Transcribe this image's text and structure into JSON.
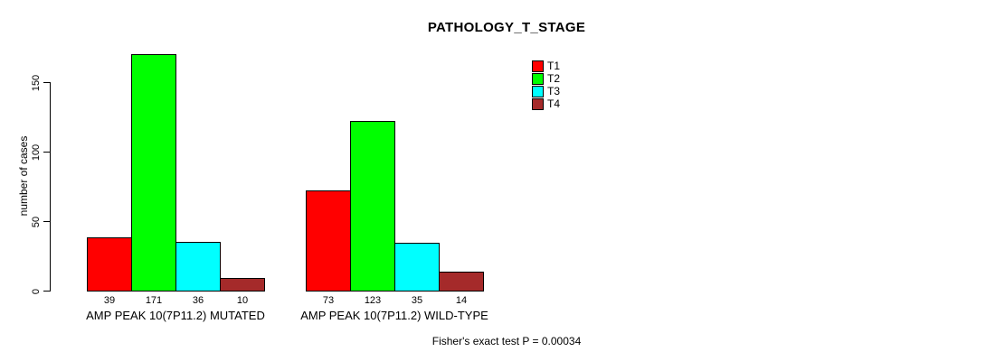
{
  "chart_data": {
    "type": "bar",
    "title": "PATHOLOGY_T_STAGE",
    "ylabel": "number of cases",
    "xlabel": "",
    "categories": [
      "AMP PEAK 10(7P11.2) MUTATED",
      "AMP PEAK 10(7P11.2) WILD-TYPE"
    ],
    "series": [
      {
        "name": "T1",
        "color": "#FF0000",
        "values": [
          39,
          73
        ]
      },
      {
        "name": "T2",
        "color": "#00FF00",
        "values": [
          171,
          123
        ]
      },
      {
        "name": "T3",
        "color": "#00FFFF",
        "values": [
          36,
          35
        ]
      },
      {
        "name": "T4",
        "color": "#A52A2A",
        "values": [
          10,
          14
        ]
      }
    ],
    "bar_value_labels": [
      [
        39,
        171,
        36,
        10
      ],
      [
        73,
        123,
        35,
        14
      ]
    ],
    "yticks": [
      0,
      50,
      100,
      150
    ],
    "ylim": [
      0,
      178
    ],
    "grid": false,
    "legend_position": "top-right",
    "annotation": "Fisher's exact test P = 0.00034"
  }
}
